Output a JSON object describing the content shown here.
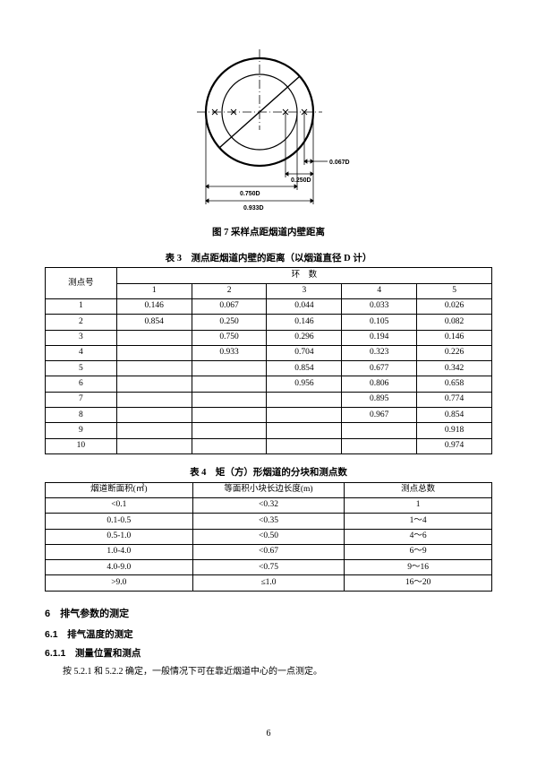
{
  "figure": {
    "caption": "图 7 采样点距烟道内壁距离",
    "labels": {
      "d0067": "0.067D",
      "d0250": "0.250D",
      "d0750": "0.750D",
      "d0933": "0.933D"
    },
    "stroke_color": "#000000",
    "ring_inner_fill": "#ffffff",
    "outer_r": 60,
    "inner_r": 42
  },
  "table3": {
    "caption": "表 3　测点距烟道内壁的距离（以烟道直径 D 计）",
    "row_header": "测点号",
    "group_header": "环　数",
    "col_labels": [
      "1",
      "2",
      "3",
      "4",
      "5"
    ],
    "rows": [
      {
        "id": "1",
        "cells": [
          "0.146",
          "0.067",
          "0.044",
          "0.033",
          "0.026"
        ]
      },
      {
        "id": "2",
        "cells": [
          "0.854",
          "0.250",
          "0.146",
          "0.105",
          "0.082"
        ]
      },
      {
        "id": "3",
        "cells": [
          "",
          "0.750",
          "0.296",
          "0.194",
          "0.146"
        ]
      },
      {
        "id": "4",
        "cells": [
          "",
          "0.933",
          "0.704",
          "0.323",
          "0.226"
        ]
      },
      {
        "id": "5",
        "cells": [
          "",
          "",
          "0.854",
          "0.677",
          "0.342"
        ]
      },
      {
        "id": "6",
        "cells": [
          "",
          "",
          "0.956",
          "0.806",
          "0.658"
        ]
      },
      {
        "id": "7",
        "cells": [
          "",
          "",
          "",
          "0.895",
          "0.774"
        ]
      },
      {
        "id": "8",
        "cells": [
          "",
          "",
          "",
          "0.967",
          "0.854"
        ]
      },
      {
        "id": "9",
        "cells": [
          "",
          "",
          "",
          "",
          "0.918"
        ]
      },
      {
        "id": "10",
        "cells": [
          "",
          "",
          "",
          "",
          "0.974"
        ]
      }
    ],
    "col_span_group": 5
  },
  "table4": {
    "caption": "表 4　矩（方）形烟道的分块和测点数",
    "headers": [
      "烟道断面积(㎡)",
      "等面积小块长边长度(m)",
      "测点总数"
    ],
    "rows": [
      [
        "<0.1",
        "<0.32",
        "1"
      ],
      [
        "0.1-0.5",
        "<0.35",
        "1～4"
      ],
      [
        "0.5-1.0",
        "<0.50",
        "4～6"
      ],
      [
        "1.0-4.0",
        "<0.67",
        "6～9"
      ],
      [
        "4.0-9.0",
        "<0.75",
        "9～16"
      ],
      [
        ">9.0",
        "≤1.0",
        "16～20"
      ]
    ]
  },
  "section6": {
    "title": "6　排气参数的测定",
    "s61": "6.1　排气温度的测定",
    "s611": "6.1.1　测量位置和测点",
    "p": "按 5.2.1 和 5.2.2 确定，一般情况下可在靠近烟道中心的一点测定。"
  },
  "page_number": "6"
}
